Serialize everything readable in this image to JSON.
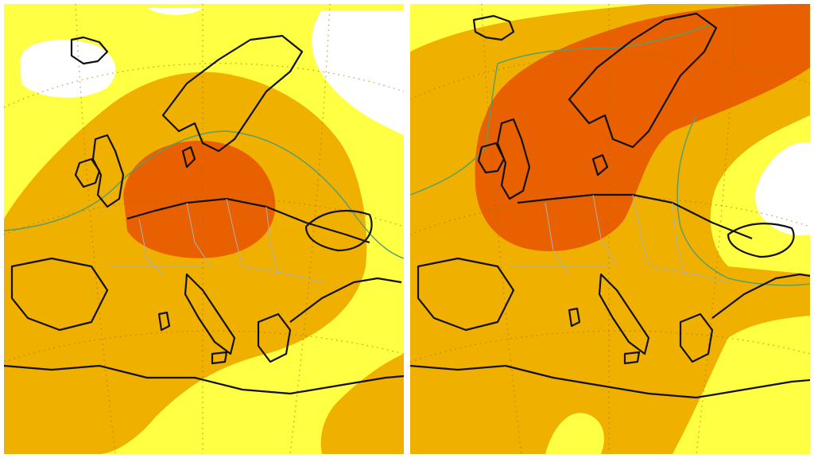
{
  "maps": [
    {
      "id": "left",
      "colors": {
        "none": "#ffffff",
        "low": "#ffff44",
        "moderate": "#f0b000",
        "high": "#e86000",
        "coast": "#111111",
        "border": "#b0b0b0",
        "grid": "#a07000",
        "contour": "#5a9e6a"
      }
    },
    {
      "id": "right",
      "colors": {
        "none": "#ffffff",
        "low": "#ffff44",
        "moderate": "#f0b000",
        "high": "#e86000",
        "coast": "#111111",
        "border": "#b0b0b0",
        "grid": "#a07000",
        "contour": "#5a9e6a"
      }
    }
  ]
}
